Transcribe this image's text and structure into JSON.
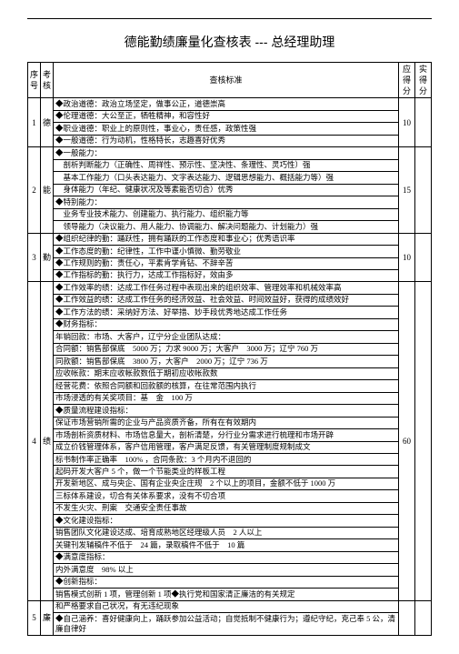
{
  "title": "德能勤绩廉量化查核表 --- 总经理助理",
  "head": {
    "c1": "序号",
    "c2": "考核",
    "c3": "查核标准",
    "c4": "应得分",
    "c5": "实得分"
  },
  "r": [
    {
      "idx": "1",
      "cat": "德",
      "score": "10",
      "lines": [
        "◆政治道德：政治立场坚定，做事公正，道德崇高",
        "◆伦理道德：大公至正，牺牲精神，和容性好",
        "◆职业道德：职业上的原则性，事业心，责任感，政策性强",
        "◆一般道德：行为动机，性格特长，志趣喜好优秀"
      ]
    },
    {
      "idx": "2",
      "cat": "能",
      "score": "15",
      "lines": [
        "◆一般能力：",
        "　剖析判断能力（正确性、周祥性、预示性、坚决性、条理性、灵巧性）强",
        "　基本工作能力（口头表达能力、文字表达能力、逻辑思想能力、概括能力等）强",
        "　身体能力（年纪、健康状况及等素能否切合）优秀",
        "◆特别能力：",
        "　业务专业技术能力、创建能力、执行能力、组织能力等",
        "　领导能力（决议能力、用人能力、协调能力、解决问题能力、计划能力）强"
      ]
    },
    {
      "idx": "3",
      "cat": "勤",
      "score": "10",
      "lines": [
        "◆组织纪律的勤：踊跃性，拥有踊跃的工作态度和事业心；优秀语识率",
        "◆工作态度的勤：纪律性，工作中谨小慎微、勤劳敬业",
        "◆工作规则的勤：责任心，平素肯学肯钻、不辞辛苦",
        "◆工作指标的勤：执行力，达成工作指标好，效由多"
      ]
    },
    {
      "idx": "4",
      "cat": "绩",
      "score": "60",
      "lines": [
        "◆工作效率的绩：达成工作任务过程中表现出来的组织效率、管理效率和机械效率高",
        "◆工作效益的绩：达成工作任务的经济效益、社会效益、时间效益好，获得的成绩效好",
        "◆工作方法的绩：采纳好方法、好举措、妙手段优秀地达成工作任务",
        "◆财务指标：",
        "年销回款：市场、大客户，辽宁分企业团队达成：",
        "合同额：销售部保底　5000 万；力求 9000 万；大客户　3000 万；辽宁 760 万",
        "同款额：销售部保底　3800 万，大客户　2000 万；辽宁 736 万",
        "应收帐款：期末应收帐款数低于期初应收帐款数",
        "经营花费：依照合同额和回款额的核算，在往常范围内执行",
        "市场浸透的有关奖项目：基　金　100 万",
        "◆质量流程建设指标：",
        "保证市场营销所需的企业与产品资质齐备，所有在有效期内",
        "市场剖析资质材料、市场信息量大，剖析清楚，分行业分需求进行梳理和市场开辟",
        "成立价钱管理体系，客户信用管理，客户满足反馈，有关管理制度规制成文",
        "标书制作率正确率　100% ，合同条款：3 个月内不退回的",
        "起码开发大客户 5 个，做一个节能类业的样板工程",
        "开发新地区、成与央企、国有企业央企庄规　2 个以上的项目，金额不低于 1000 万",
        "三标体系建设，切合有关体系要求，没有不切合项",
        "不发生火灾、刑案　交通安全责任事故",
        "◆文化建设指标：",
        "销售团队文化建设达成、培育成熟地区经理级人员　2 人以上",
        "关键刊发辅稿件不低于　24 篇，录取稿件不低于　10 篇",
        "◆满意度指标：",
        "内外满意度　98% 以上",
        "◆创新指标：",
        "销售模式创新 1 项，管理创新 1 项◆执行党和国家清正廉洁的有关规定"
      ]
    },
    {
      "idx": "5",
      "cat": "廉",
      "score": "",
      "lines": [
        "和严格要求自己状况，有无违纪现象",
        "◆自己涵养：喜好健康向上，踊跃参加公益活动；自觉抵制不健康行为；遵纪守纪，克己奉 5 公，清廉自律好"
      ]
    }
  ]
}
